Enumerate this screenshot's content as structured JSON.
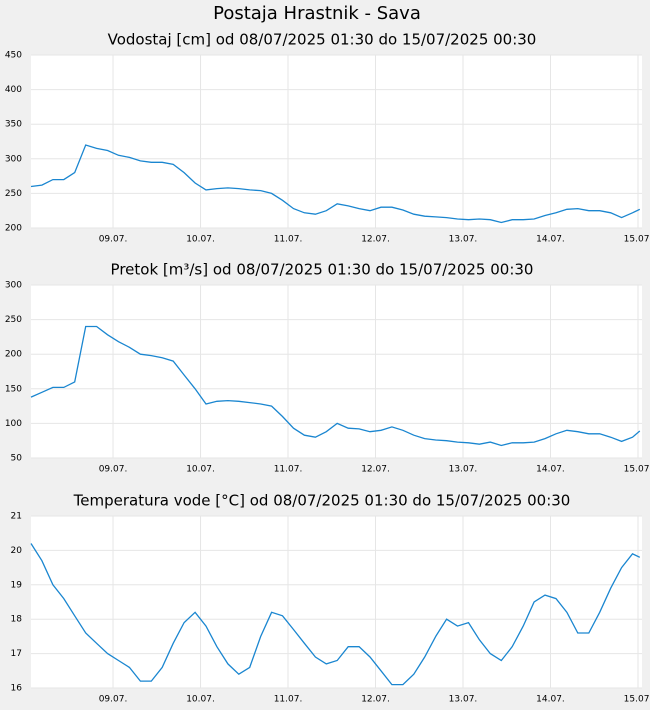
{
  "title": "Postaja Hrastnik - Sava",
  "chart_data": [
    {
      "type": "line",
      "title": "Vodostaj [cm] od 08/07/2025 01:30 do 15/07/2025 00:30",
      "color": "#1a86d0",
      "grid": true,
      "x": [
        8.0625,
        8.1875,
        8.3125,
        8.4375,
        8.5625,
        8.6875,
        8.8125,
        8.9375,
        9.0625,
        9.1875,
        9.3125,
        9.4375,
        9.5625,
        9.6875,
        9.8125,
        9.9375,
        10.0625,
        10.1875,
        10.3125,
        10.4375,
        10.5625,
        10.6875,
        10.8125,
        10.9375,
        11.0625,
        11.1875,
        11.3125,
        11.4375,
        11.5625,
        11.6875,
        11.8125,
        11.9375,
        12.0625,
        12.1875,
        12.3125,
        12.4375,
        12.5625,
        12.6875,
        12.8125,
        12.9375,
        13.0625,
        13.1875,
        13.3125,
        13.4375,
        13.5625,
        13.6875,
        13.8125,
        13.9375,
        14.0625,
        14.1875,
        14.3125,
        14.4375,
        14.5625,
        14.6875,
        14.8125,
        14.9375,
        15.0208
      ],
      "values": [
        260,
        262,
        270,
        270,
        280,
        320,
        315,
        312,
        305,
        302,
        297,
        295,
        295,
        292,
        280,
        265,
        255,
        257,
        258,
        257,
        255,
        254,
        250,
        240,
        228,
        222,
        220,
        225,
        235,
        232,
        228,
        225,
        230,
        230,
        226,
        220,
        217,
        216,
        215,
        213,
        212,
        213,
        212,
        208,
        212,
        212,
        213,
        218,
        222,
        227,
        228,
        225,
        225,
        222,
        215,
        222,
        227
      ],
      "xlim": [
        8.0625,
        15.0458
      ],
      "xticks": [
        {
          "value": 9,
          "label": "09.07."
        },
        {
          "value": 10,
          "label": "10.07."
        },
        {
          "value": 11,
          "label": "11.07."
        },
        {
          "value": 12,
          "label": "12.07."
        },
        {
          "value": 13,
          "label": "13.07."
        },
        {
          "value": 14,
          "label": "14.07."
        },
        {
          "value": 15,
          "label": "15.07."
        }
      ],
      "ylim": [
        200,
        450
      ],
      "yticks": [
        200,
        250,
        300,
        350,
        400,
        450
      ]
    },
    {
      "type": "line",
      "title": "Pretok [m³/s] od 08/07/2025 01:30 do 15/07/2025 00:30",
      "color": "#1a86d0",
      "grid": true,
      "x": [
        8.0625,
        8.1875,
        8.3125,
        8.4375,
        8.5625,
        8.6875,
        8.8125,
        8.9375,
        9.0625,
        9.1875,
        9.3125,
        9.4375,
        9.5625,
        9.6875,
        9.8125,
        9.9375,
        10.0625,
        10.1875,
        10.3125,
        10.4375,
        10.5625,
        10.6875,
        10.8125,
        10.9375,
        11.0625,
        11.1875,
        11.3125,
        11.4375,
        11.5625,
        11.6875,
        11.8125,
        11.9375,
        12.0625,
        12.1875,
        12.3125,
        12.4375,
        12.5625,
        12.6875,
        12.8125,
        12.9375,
        13.0625,
        13.1875,
        13.3125,
        13.4375,
        13.5625,
        13.6875,
        13.8125,
        13.9375,
        14.0625,
        14.1875,
        14.3125,
        14.4375,
        14.5625,
        14.6875,
        14.8125,
        14.9375,
        15.0208
      ],
      "values": [
        138,
        145,
        152,
        152,
        160,
        240,
        240,
        228,
        218,
        210,
        200,
        198,
        195,
        190,
        170,
        150,
        128,
        132,
        133,
        132,
        130,
        128,
        125,
        110,
        93,
        83,
        80,
        88,
        100,
        93,
        92,
        88,
        90,
        95,
        90,
        83,
        78,
        76,
        75,
        73,
        72,
        70,
        73,
        68,
        72,
        72,
        73,
        78,
        85,
        90,
        88,
        85,
        85,
        80,
        74,
        80,
        89
      ],
      "xlim": [
        8.0625,
        15.0458
      ],
      "xticks": [
        {
          "value": 9,
          "label": "09.07."
        },
        {
          "value": 10,
          "label": "10.07."
        },
        {
          "value": 11,
          "label": "11.07."
        },
        {
          "value": 12,
          "label": "12.07."
        },
        {
          "value": 13,
          "label": "13.07."
        },
        {
          "value": 14,
          "label": "14.07."
        },
        {
          "value": 15,
          "label": "15.07."
        }
      ],
      "ylim": [
        50,
        300
      ],
      "yticks": [
        50,
        100,
        150,
        200,
        250,
        300
      ]
    },
    {
      "type": "line",
      "title": "Temperatura vode [°C] od 08/07/2025 01:30 do 15/07/2025 00:30",
      "color": "#1a86d0",
      "grid": true,
      "x": [
        8.0625,
        8.1875,
        8.3125,
        8.4375,
        8.5625,
        8.6875,
        8.8125,
        8.9375,
        9.0625,
        9.1875,
        9.3125,
        9.4375,
        9.5625,
        9.6875,
        9.8125,
        9.9375,
        10.0625,
        10.1875,
        10.3125,
        10.4375,
        10.5625,
        10.6875,
        10.8125,
        10.9375,
        11.0625,
        11.1875,
        11.3125,
        11.4375,
        11.5625,
        11.6875,
        11.8125,
        11.9375,
        12.0625,
        12.1875,
        12.3125,
        12.4375,
        12.5625,
        12.6875,
        12.8125,
        12.9375,
        13.0625,
        13.1875,
        13.3125,
        13.4375,
        13.5625,
        13.6875,
        13.8125,
        13.9375,
        14.0625,
        14.1875,
        14.3125,
        14.4375,
        14.5625,
        14.6875,
        14.8125,
        14.9375,
        15.0208
      ],
      "values": [
        20.2,
        19.7,
        19.0,
        18.6,
        18.1,
        17.6,
        17.3,
        17.0,
        16.8,
        16.6,
        16.2,
        16.2,
        16.6,
        17.3,
        17.9,
        18.2,
        17.8,
        17.2,
        16.7,
        16.4,
        16.6,
        17.5,
        18.2,
        18.1,
        17.7,
        17.3,
        16.9,
        16.7,
        16.8,
        17.2,
        17.2,
        16.9,
        16.5,
        16.1,
        16.1,
        16.4,
        16.9,
        17.5,
        18.0,
        17.8,
        17.9,
        17.4,
        17.0,
        16.8,
        17.2,
        17.8,
        18.5,
        18.7,
        18.6,
        18.2,
        17.6,
        17.6,
        18.2,
        18.9,
        19.5,
        19.9,
        19.8
      ],
      "xlim": [
        8.0625,
        15.0458
      ],
      "xticks": [
        {
          "value": 9,
          "label": "09.07."
        },
        {
          "value": 10,
          "label": "10.07."
        },
        {
          "value": 11,
          "label": "11.07."
        },
        {
          "value": 12,
          "label": "12.07."
        },
        {
          "value": 13,
          "label": "13.07."
        },
        {
          "value": 14,
          "label": "14.07."
        },
        {
          "value": 15,
          "label": "15.07."
        }
      ],
      "ylim": [
        16,
        21
      ],
      "yticks": [
        16,
        17,
        18,
        19,
        20,
        21
      ]
    }
  ]
}
